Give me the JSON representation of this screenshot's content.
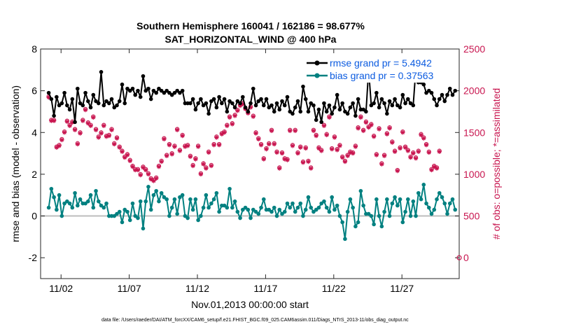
{
  "chart_data": {
    "type": "line",
    "title": "Southern Hemisphere 160041 / 162186 = 98.677%",
    "subtitle": "SAT_HORIZONTAL_WIND @ 400 hPa",
    "xlabel": "Nov.01,2013 00:00:00 start",
    "ylabel_left": "rmse and bias (model - observation)",
    "ylabel_right": "# of obs: o=possible; *=assimilated",
    "footer": "data file: /Users/raeder/DAI/ATM_forcXX/CAM6_setup/f.e21.FHIST_BGC.f09_025.CAM6assim.011/Diags_NTrS_2013-11/obs_diag_output.nc",
    "xlim": [
      0.5,
      31.2
    ],
    "x_ticks": [
      {
        "value": 2,
        "label": "11/02"
      },
      {
        "value": 7,
        "label": "11/07"
      },
      {
        "value": 12,
        "label": "11/12"
      },
      {
        "value": 17,
        "label": "11/17"
      },
      {
        "value": 22,
        "label": "11/22"
      },
      {
        "value": 27,
        "label": "11/27"
      }
    ],
    "ylim_left": [
      -3,
      8
    ],
    "y_ticks_left": [
      -2,
      0,
      2,
      4,
      6,
      8
    ],
    "ylim_right": [
      -250,
      2500
    ],
    "y_ticks_right": [
      0,
      500,
      1000,
      1500,
      2000,
      2500
    ],
    "zero_line": 0,
    "legend": [
      {
        "label": "rmse grand pr = 5.4942",
        "color": "#000000"
      },
      {
        "label": "bias grand pr = 0.37563",
        "color": "#008080"
      }
    ],
    "rmse_color": "#000000",
    "bias_color": "#008080",
    "obs_color": "#c8154f",
    "rmse": [
      5.9,
      5.6,
      4.8,
      5.7,
      5.3,
      5.4,
      5.9,
      5.3,
      5.1,
      5.6,
      4.5,
      6.1,
      5.4,
      5.3,
      5.9,
      5.5,
      5.2,
      5.8,
      5.5,
      5.4,
      6.9,
      5.3,
      5.5,
      5.4,
      5.6,
      5.2,
      5.3,
      5.5,
      6.3,
      5.4,
      6.1,
      6.0,
      6.1,
      5.8,
      6.0,
      5.7,
      6.7,
      6.0,
      6.1,
      5.6,
      6.0,
      5.9,
      6.1,
      6.0,
      5.9,
      6.0,
      5.9,
      5.8,
      5.9,
      6.0,
      5.9,
      6.0,
      5.4,
      5.4,
      5.4,
      5.6,
      5.1,
      5.4,
      5.6,
      5.3,
      5.4,
      4.9,
      5.5,
      5.6,
      5.2,
      5.7,
      5.4,
      5.6,
      5.0,
      5.5,
      5.4,
      5.2,
      5.5,
      5.4,
      5.7,
      5.2,
      5.0,
      5.4,
      6.1,
      5.3,
      5.5,
      5.6,
      5.3,
      5.6,
      5.2,
      5.3,
      5.0,
      5.4,
      5.1,
      5.5,
      5.3,
      5.7,
      5.0,
      4.9,
      5.2,
      5.5,
      5.0,
      6.2,
      5.6,
      5.0,
      5.4,
      5.3,
      4.6,
      5.1,
      4.5,
      5.4,
      5.0,
      5.3,
      4.9,
      5.2,
      5.8,
      5.1,
      5.4,
      5.0,
      4.9,
      5.2,
      5.4,
      4.8,
      5.6,
      5.1,
      5.1,
      5.0,
      7.0,
      5.3,
      5.4,
      5.9,
      5.2,
      5.6,
      5.4,
      4.9,
      5.5,
      5.3,
      5.6,
      5.3,
      5.2,
      5.8,
      5.4,
      5.6,
      5.4,
      5.3,
      7.0,
      6.4,
      6.4,
      6.3,
      5.9,
      6.0,
      5.9,
      5.6,
      5.3,
      5.6,
      5.8,
      5.5,
      5.8,
      6.1,
      5.8,
      6.0
    ],
    "bias": [
      0.4,
      1.3,
      0.9,
      0.3,
      1.0,
      0.0,
      0.6,
      0.7,
      0.6,
      0.4,
      1.1,
      0.5,
      0.8,
      0.6,
      0.6,
      0.7,
      1.0,
      0.4,
      1.2,
      0.7,
      0.5,
      0.4,
      0.6,
      0.0,
      0.0,
      0.0,
      0.1,
      0.2,
      -0.3,
      0.3,
      0.2,
      -0.2,
      0.6,
      0.0,
      -0.1,
      0.7,
      -0.6,
      0.7,
      1.4,
      0.3,
      1.0,
      1.2,
      0.7,
      1.1,
      0.9,
      0.8,
      0.0,
      0.4,
      0.8,
      0.1,
      0.9,
      1.0,
      0.0,
      -0.1,
      0.8,
      0.3,
      0.8,
      -0.2,
      0.0,
      0.4,
      1.0,
      0.4,
      0.6,
      0.8,
      1.1,
      0.2,
      0.5,
      0.5,
      0.4,
      1.3,
      0.4,
      0.7,
      0.2,
      -0.1,
      0.3,
      0.4,
      0.3,
      -0.1,
      0.3,
      0.2,
      0.1,
      0.4,
      0.8,
      0.3,
      0.3,
      0.2,
      0.4,
      0.0,
      0.3,
      0.1,
      0.2,
      0.6,
      0.4,
      0.6,
      0.2,
      0.4,
      0.6,
      0.0,
      0.3,
      0.9,
      0.4,
      0.2,
      0.3,
      0.4,
      0.6,
      0.7,
      0.4,
      0.2,
      0.9,
      0.3,
      0.5,
      0.0,
      -0.3,
      -1.1,
      0.2,
      0.8,
      0.4,
      -0.5,
      -0.3,
      1.2,
      0.5,
      0.1,
      0.1,
      0.0,
      -0.4,
      0.8,
      0.0,
      -0.5,
      0.2,
      0.8,
      0.0,
      0.6,
      0.9,
      0.5,
      0.8,
      -0.3,
      0.2,
      0.8,
      0.0,
      0.7,
      0.0,
      1.1,
      0.8,
      1.5,
      0.6,
      0.4,
      0.1,
      0.3,
      0.8,
      1.1,
      0.9,
      0.6,
      0.1,
      0.6,
      0.8,
      0.3
    ],
    "obs_assimilated": [
      1920,
      1640,
      1640,
      1320,
      1340,
      1410,
      1500,
      1630,
      1580,
      1620,
      1530,
      1360,
      1490,
      1640,
      1770,
      1610,
      1580,
      1680,
      1530,
      1440,
      1490,
      1580,
      1450,
      1460,
      1530,
      1360,
      1430,
      1320,
      1270,
      1200,
      1230,
      1160,
      1090,
      1050,
      1050,
      990,
      1080,
      1050,
      1000,
      940,
      920,
      950,
      1090,
      1150,
      1420,
      1220,
      1350,
      1240,
      1330,
      1530,
      1280,
      1460,
      1330,
      1340,
      1210,
      1100,
      1180,
      1330,
      1000,
      1120,
      1070,
      1260,
      1100,
      1350,
      1440,
      1350,
      1480,
      1500,
      1580,
      1680,
      1600,
      1700,
      1760,
      1820,
      1840,
      1780,
      1730,
      1800,
      1690,
      1490,
      1420,
      1350,
      1180,
      1300,
      1360,
      1520,
      1360,
      1260,
      1070,
      1250,
      1180,
      1170,
      1520,
      1340,
      1520,
      1250,
      1320,
      1140,
      1310,
      1150,
      1070,
      1520,
      1460,
      1310,
      1280,
      1580,
      1470,
      1680,
      1300,
      1440,
      1290,
      1340,
      1200,
      1150,
      1220,
      1260,
      1250,
      1330,
      1550,
      1680,
      1520,
      1620,
      1560,
      1590,
      1450,
      1230,
      1540,
      1120,
      1220,
      1480,
      1550,
      1380,
      1270,
      1040,
      1310,
      1500,
      1320,
      1280,
      1200,
      1250,
      1190,
      1270,
      1470,
      1430,
      1350,
      1260,
      1050,
      1090,
      1070,
      1270
    ],
    "obs_possible": [
      1930,
      1650,
      1650,
      1330,
      1350,
      1420,
      1510,
      1640,
      1590,
      1630,
      1540,
      1370,
      1500,
      1650,
      1780,
      1620,
      1590,
      1690,
      1540,
      1450,
      1500,
      1590,
      1460,
      1470,
      1540,
      1370,
      1440,
      1330,
      1280,
      1210,
      1240,
      1170,
      1100,
      1060,
      1060,
      1000,
      1090,
      1060,
      1010,
      950,
      930,
      960,
      1100,
      1160,
      1430,
      1230,
      1360,
      1250,
      1340,
      1540,
      1290,
      1470,
      1340,
      1350,
      1220,
      1110,
      1190,
      1340,
      1010,
      1130,
      1080,
      1270,
      1110,
      1360,
      1450,
      1360,
      1490,
      1510,
      1590,
      1690,
      1610,
      1710,
      1770,
      1830,
      1850,
      1790,
      1740,
      1810,
      1700,
      1500,
      1430,
      1360,
      1190,
      1310,
      1370,
      1530,
      1370,
      1270,
      1080,
      1260,
      1190,
      1180,
      1530,
      1350,
      1530,
      1260,
      1330,
      1150,
      1320,
      1160,
      1080,
      1530,
      1470,
      1320,
      1290,
      1590,
      1480,
      1690,
      1310,
      1450,
      1300,
      1350,
      1210,
      1160,
      1230,
      1270,
      1260,
      1340,
      1560,
      1690,
      1530,
      1630,
      1570,
      1600,
      1460,
      1240,
      1550,
      1130,
      1230,
      1490,
      1560,
      1390,
      1280,
      1050,
      1320,
      1510,
      1330,
      1290,
      1210,
      1260,
      1200,
      1280,
      1480,
      1440,
      1360,
      1270,
      1060,
      1100,
      1080,
      1280
    ]
  }
}
